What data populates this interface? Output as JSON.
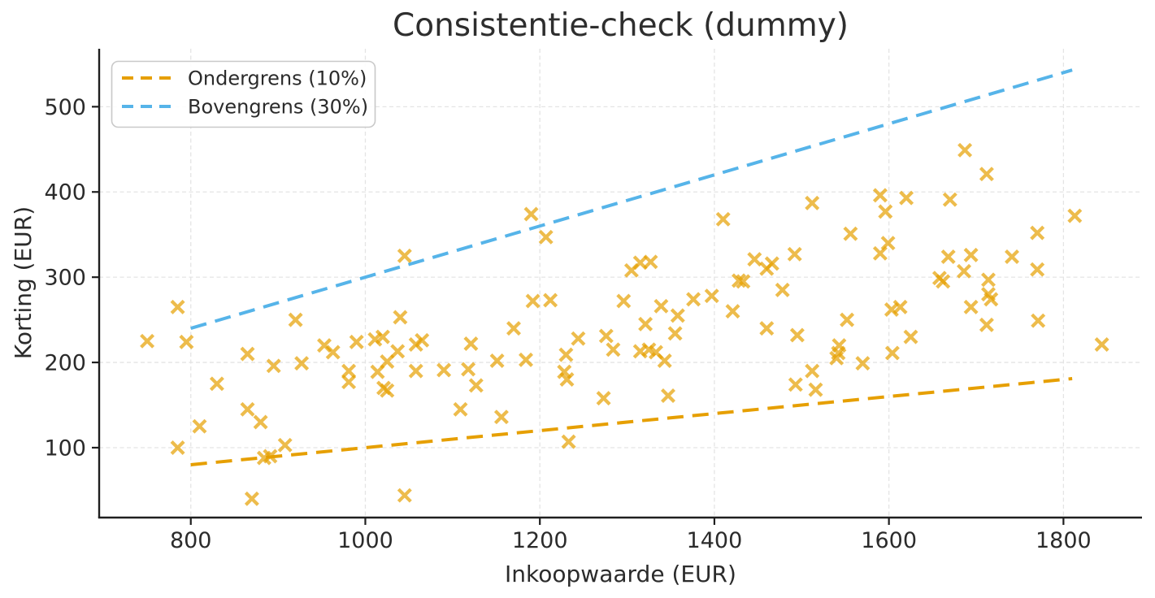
{
  "chart_data": {
    "type": "scatter",
    "title": "Consistentie-check (dummy)",
    "xlabel": "Inkoopwaarde (EUR)",
    "ylabel": "Korting (EUR)",
    "xlim": [
      695,
      1890
    ],
    "ylim": [
      18,
      568
    ],
    "xticks": [
      800,
      1000,
      1200,
      1400,
      1600,
      1800
    ],
    "yticks": [
      100,
      200,
      300,
      400,
      500
    ],
    "grid": true,
    "grid_style": "dashed",
    "legend": {
      "position": "upper-left",
      "entries": [
        {
          "label": "Ondergrens (10%)",
          "color": "#E69F00",
          "style": "dashed"
        },
        {
          "label": "Bovengrens (30%)",
          "color": "#56B4E9",
          "style": "dashed"
        }
      ]
    },
    "lines": [
      {
        "name": "Ondergrens (10%)",
        "rate": 0.1,
        "x_start": 800,
        "x_end": 1810,
        "color": "#E69F00"
      },
      {
        "name": "Bovengrens (30%)",
        "rate": 0.3,
        "x_start": 800,
        "x_end": 1810,
        "color": "#56B4E9"
      }
    ],
    "scatter": {
      "marker": "x",
      "color": "#E69F00",
      "opacity": 0.7,
      "points": [
        [
          750,
          225
        ],
        [
          785,
          265
        ],
        [
          795,
          224
        ],
        [
          785,
          100
        ],
        [
          810,
          125
        ],
        [
          830,
          175
        ],
        [
          865,
          145
        ],
        [
          870,
          40
        ],
        [
          865,
          210
        ],
        [
          880,
          130
        ],
        [
          884,
          88
        ],
        [
          891,
          90
        ],
        [
          895,
          196
        ],
        [
          908,
          103
        ],
        [
          920,
          250
        ],
        [
          927,
          199
        ],
        [
          953,
          220
        ],
        [
          963,
          212
        ],
        [
          981,
          190
        ],
        [
          981,
          177
        ],
        [
          990,
          224
        ],
        [
          1011,
          227
        ],
        [
          1020,
          230
        ],
        [
          1014,
          189
        ],
        [
          1025,
          201
        ],
        [
          1021,
          170
        ],
        [
          1025,
          167
        ],
        [
          1037,
          213
        ],
        [
          1040,
          253
        ],
        [
          1045,
          325
        ],
        [
          1045,
          44
        ],
        [
          1058,
          221
        ],
        [
          1065,
          226
        ],
        [
          1058,
          190
        ],
        [
          1090,
          191
        ],
        [
          1109,
          145
        ],
        [
          1118,
          192
        ],
        [
          1121,
          222
        ],
        [
          1127,
          173
        ],
        [
          1151,
          202
        ],
        [
          1156,
          136
        ],
        [
          1170,
          240
        ],
        [
          1184,
          203
        ],
        [
          1190,
          374
        ],
        [
          1192,
          272
        ],
        [
          1207,
          347
        ],
        [
          1212,
          273
        ],
        [
          1228,
          189
        ],
        [
          1230,
          209
        ],
        [
          1231,
          180
        ],
        [
          1233,
          107
        ],
        [
          1244,
          228
        ],
        [
          1273,
          158
        ],
        [
          1276,
          231
        ],
        [
          1284,
          215
        ],
        [
          1296,
          272
        ],
        [
          1305,
          308
        ],
        [
          1315,
          317
        ],
        [
          1327,
          318
        ],
        [
          1315,
          213
        ],
        [
          1325,
          215
        ],
        [
          1333,
          212
        ],
        [
          1343,
          202
        ],
        [
          1321,
          245
        ],
        [
          1339,
          266
        ],
        [
          1347,
          161
        ],
        [
          1355,
          234
        ],
        [
          1358,
          255
        ],
        [
          1376,
          274
        ],
        [
          1397,
          278
        ],
        [
          1410,
          368
        ],
        [
          1421,
          260
        ],
        [
          1428,
          296
        ],
        [
          1433,
          295
        ],
        [
          1446,
          321
        ],
        [
          1460,
          310
        ],
        [
          1466,
          316
        ],
        [
          1460,
          240
        ],
        [
          1478,
          285
        ],
        [
          1492,
          327
        ],
        [
          1495,
          232
        ],
        [
          1493,
          174
        ],
        [
          1512,
          387
        ],
        [
          1512,
          190
        ],
        [
          1516,
          168
        ],
        [
          1540,
          205
        ],
        [
          1542,
          211
        ],
        [
          1543,
          220
        ],
        [
          1552,
          250
        ],
        [
          1556,
          351
        ],
        [
          1570,
          199
        ],
        [
          1590,
          396
        ],
        [
          1590,
          328
        ],
        [
          1596,
          377
        ],
        [
          1599,
          340
        ],
        [
          1603,
          262
        ],
        [
          1613,
          265
        ],
        [
          1604,
          211
        ],
        [
          1620,
          393
        ],
        [
          1625,
          230
        ],
        [
          1658,
          299
        ],
        [
          1662,
          295
        ],
        [
          1668,
          324
        ],
        [
          1670,
          391
        ],
        [
          1687,
          449
        ],
        [
          1686,
          307
        ],
        [
          1694,
          326
        ],
        [
          1694,
          265
        ],
        [
          1712,
          421
        ],
        [
          1714,
          297
        ],
        [
          1714,
          280
        ],
        [
          1717,
          274
        ],
        [
          1712,
          244
        ],
        [
          1741,
          324
        ],
        [
          1770,
          352
        ],
        [
          1770,
          309
        ],
        [
          1771,
          249
        ],
        [
          1813,
          372
        ],
        [
          1844,
          221
        ]
      ]
    },
    "style": {
      "background": "#ffffff",
      "spine_color": "#1f1f1f",
      "grid_color": "#e4e4e4",
      "text_color": "#2b2b2b",
      "title_color": "#2e2e2e"
    }
  }
}
